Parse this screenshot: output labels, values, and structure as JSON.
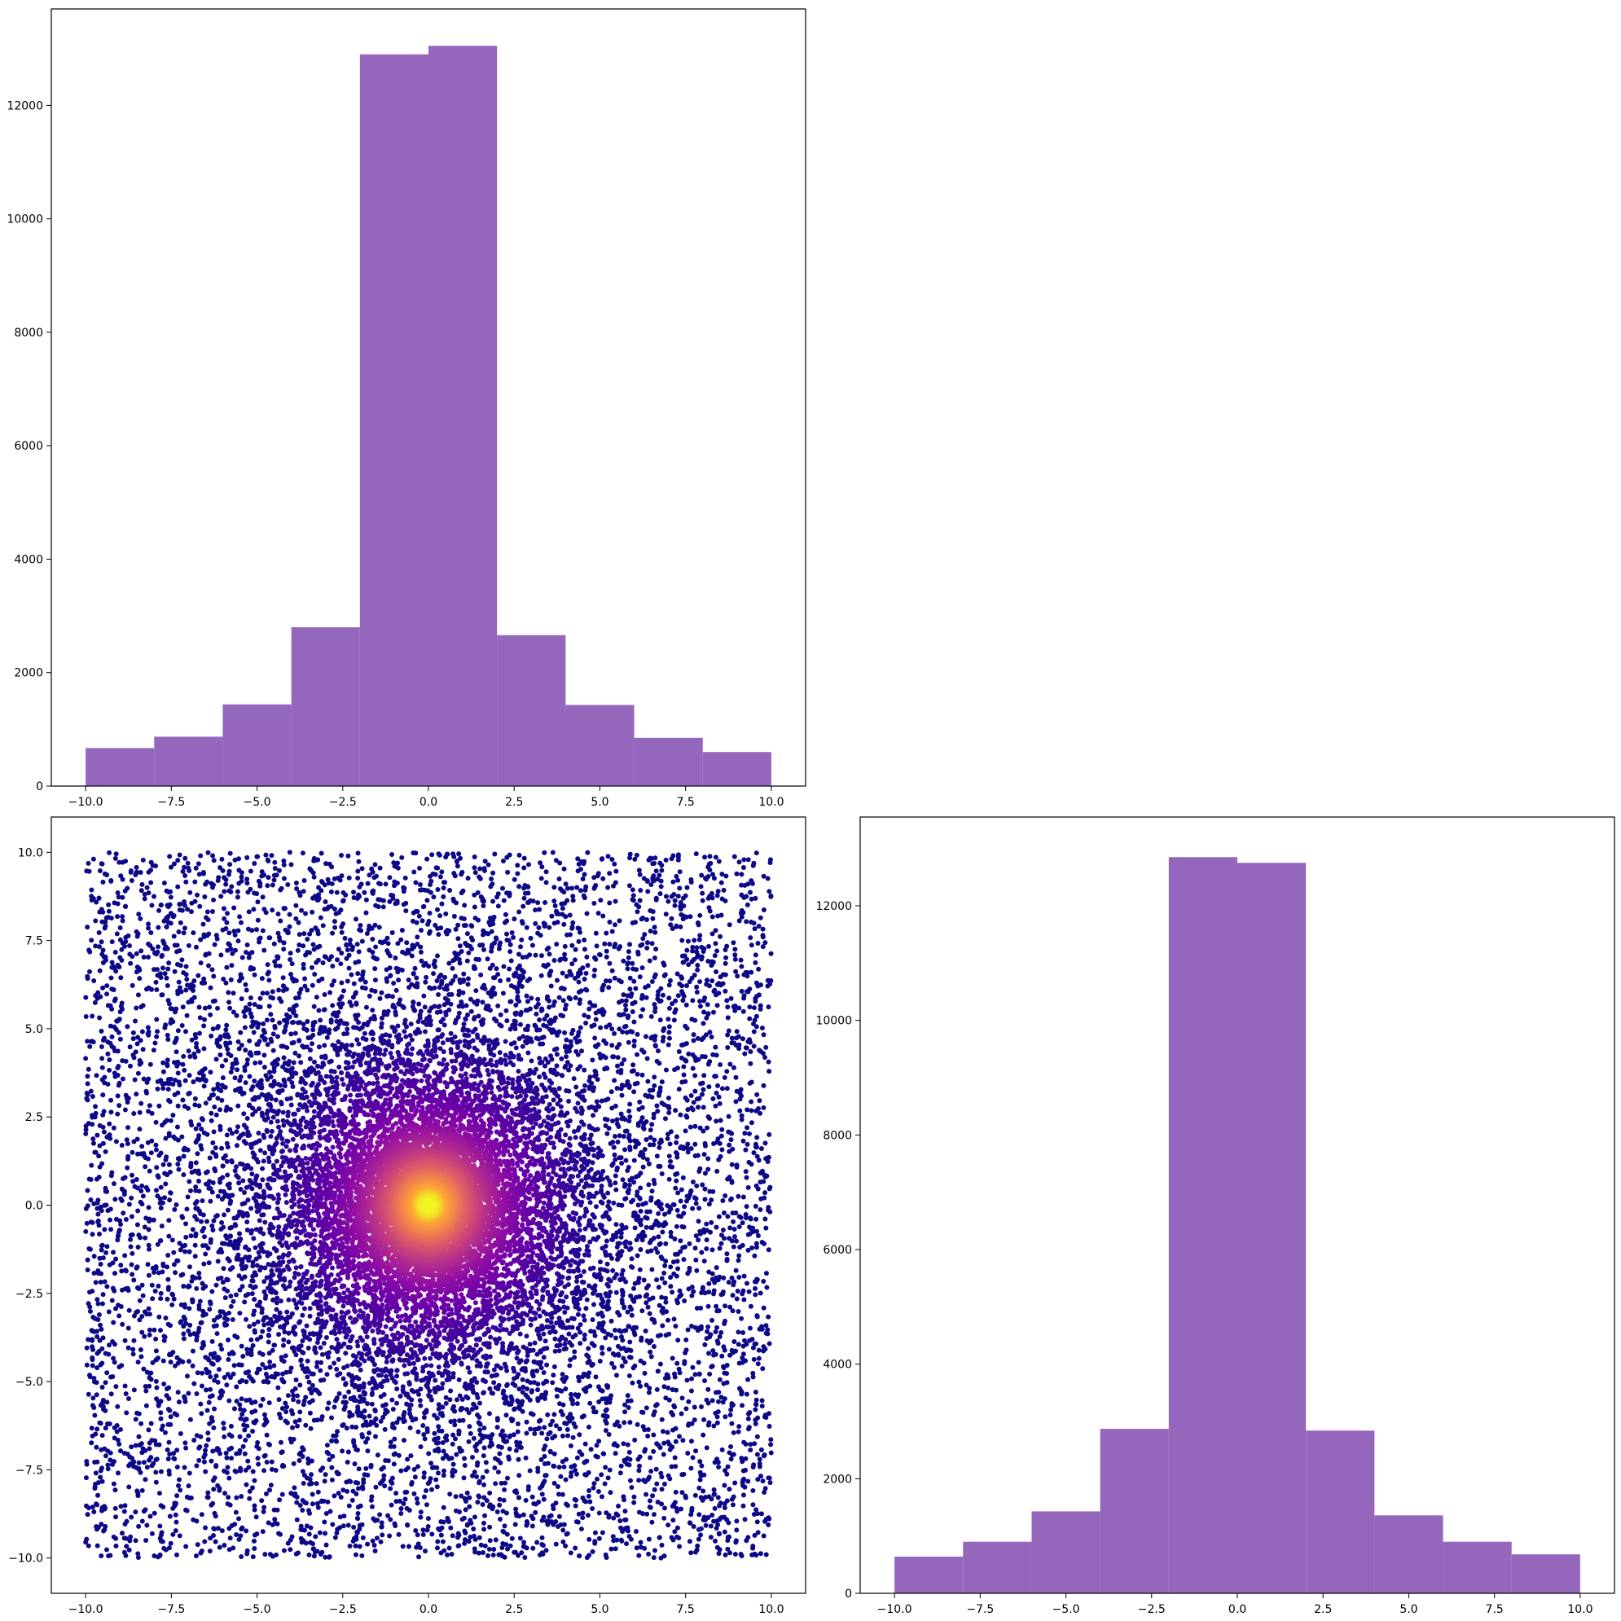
{
  "colors": {
    "hist_bar": "#9467bd",
    "scatter_colormap": "plasma",
    "axes_frame": "#000000",
    "background": "#ffffff"
  },
  "chart_data": [
    {
      "panel": "top-left",
      "type": "bar",
      "bin_edges": [
        -10,
        -8,
        -6,
        -4,
        -2,
        0,
        2,
        4,
        6,
        8,
        10
      ],
      "values": [
        670,
        870,
        1440,
        2800,
        12900,
        13050,
        2660,
        1430,
        850,
        600
      ],
      "xlim": [
        -11,
        11
      ],
      "ylim": [
        0,
        13700
      ],
      "xticks": [
        -10,
        -7.5,
        -5,
        -2.5,
        0,
        2.5,
        5,
        7.5,
        10
      ],
      "xtick_labels": [
        "−10.0",
        "−7.5",
        "−5.0",
        "−2.5",
        "0.0",
        "2.5",
        "5.0",
        "7.5",
        "10.0"
      ],
      "yticks": [
        0,
        2000,
        4000,
        6000,
        8000,
        10000,
        12000
      ],
      "ytick_labels": [
        "0",
        "2000",
        "4000",
        "6000",
        "8000",
        "10000",
        "12000"
      ]
    },
    {
      "panel": "bottom-left",
      "type": "scatter",
      "description_of_points": "about 20000 points spread uniformly in x and y over [-10, 10], densest near the origin; colored by density with the plasma colormap (dark blue-purple at the edges, yellow at the center)",
      "x_range": [
        -10,
        10
      ],
      "y_range": [
        -10,
        10
      ],
      "xlim": [
        -11,
        11
      ],
      "ylim": [
        -11,
        11
      ],
      "xticks": [
        -10,
        -7.5,
        -5,
        -2.5,
        0,
        2.5,
        5,
        7.5,
        10
      ],
      "xtick_labels": [
        "−10.0",
        "−7.5",
        "−5.0",
        "−2.5",
        "0.0",
        "2.5",
        "5.0",
        "7.5",
        "10.0"
      ],
      "yticks": [
        -10,
        -7.5,
        -5,
        -2.5,
        0,
        2.5,
        5,
        7.5,
        10
      ],
      "ytick_labels": [
        "−10.0",
        "−7.5",
        "−5.0",
        "−2.5",
        "0.0",
        "2.5",
        "5.0",
        "7.5",
        "10.0"
      ]
    },
    {
      "panel": "bottom-right",
      "type": "bar",
      "bin_edges": [
        -10,
        -8,
        -6,
        -4,
        -2,
        0,
        2,
        4,
        6,
        8,
        10
      ],
      "values": [
        640,
        900,
        1430,
        2870,
        12850,
        12750,
        2840,
        1360,
        900,
        680
      ],
      "xlim": [
        -11,
        11
      ],
      "ylim": [
        0,
        13550
      ],
      "xticks": [
        -10,
        -7.5,
        -5,
        -2.5,
        0,
        2.5,
        5,
        7.5,
        10
      ],
      "xtick_labels": [
        "−10.0",
        "−7.5",
        "−5.0",
        "−2.5",
        "0.0",
        "2.5",
        "5.0",
        "7.5",
        "10.0"
      ],
      "yticks": [
        0,
        2000,
        4000,
        6000,
        8000,
        10000,
        12000
      ],
      "ytick_labels": [
        "0",
        "2000",
        "4000",
        "6000",
        "8000",
        "10000",
        "12000"
      ]
    }
  ]
}
